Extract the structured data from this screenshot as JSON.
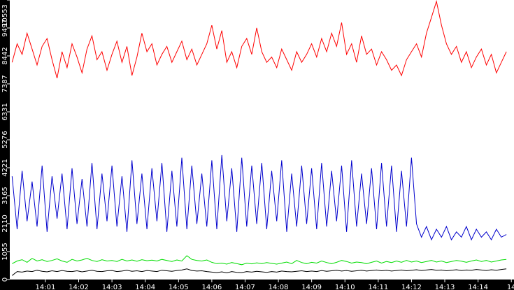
{
  "chart_data": {
    "type": "line",
    "x": [
      840,
      840.15,
      840.3,
      840.45,
      840.6,
      840.75,
      840.9,
      841.05,
      841.2,
      841.35,
      841.5,
      841.65,
      841.8,
      841.95,
      842.1,
      842.25,
      842.4,
      842.55,
      842.7,
      842.85,
      843,
      843.15,
      843.3,
      843.45,
      843.6,
      843.75,
      843.9,
      844.05,
      844.2,
      844.35,
      844.5,
      844.65,
      844.8,
      844.95,
      845.1,
      845.25,
      845.4,
      845.55,
      845.7,
      845.85,
      846,
      846.15,
      846.3,
      846.45,
      846.6,
      846.75,
      846.9,
      847.05,
      847.2,
      847.35,
      847.5,
      847.65,
      847.8,
      847.95,
      848.1,
      848.25,
      848.4,
      848.55,
      848.7,
      848.85,
      849,
      849.15,
      849.3,
      849.45,
      849.6,
      849.75,
      849.9,
      850.05,
      850.2,
      850.35,
      850.5,
      850.65,
      850.8,
      850.95,
      851.1,
      851.25,
      851.4,
      851.55,
      851.7,
      851.85,
      852,
      852.15,
      852.3,
      852.45,
      852.6,
      852.75,
      852.9,
      853.05,
      853.2,
      853.35,
      853.5,
      853.65,
      853.8,
      853.95,
      854.1,
      854.25,
      854.4,
      854.55,
      854.7,
      854.85
    ],
    "series": [
      {
        "color": "#ff0000",
        "values": [
          8200,
          8900,
          8500,
          9300,
          8700,
          8100,
          8800,
          9100,
          8300,
          7600,
          8600,
          8000,
          8900,
          8400,
          7800,
          8700,
          9200,
          8300,
          8600,
          7900,
          8500,
          9000,
          8200,
          8800,
          7700,
          8400,
          9300,
          8600,
          8900,
          8100,
          8500,
          8800,
          8200,
          8600,
          9000,
          8300,
          8700,
          8100,
          8500,
          8900,
          9600,
          8700,
          9400,
          8200,
          8600,
          8000,
          8800,
          9100,
          8500,
          9500,
          8600,
          8200,
          8400,
          8000,
          8700,
          8300,
          7900,
          8600,
          8200,
          8500,
          8900,
          8400,
          9100,
          8600,
          9300,
          8800,
          9700,
          8500,
          8900,
          8200,
          9200,
          8500,
          8700,
          8100,
          8600,
          8300,
          7900,
          8100,
          7700,
          8300,
          8600,
          8900,
          8400,
          9300,
          9900,
          10500,
          9600,
          8900,
          8500,
          8800,
          8200,
          8600,
          8000,
          8400,
          8700,
          8100,
          8500,
          7800,
          8200,
          8600
        ]
      },
      {
        "color": "#0000cc",
        "values": [
          3900,
          1900,
          4100,
          2200,
          3700,
          2000,
          4300,
          1800,
          3900,
          2300,
          4000,
          1900,
          4200,
          2100,
          3800,
          2000,
          4400,
          1900,
          4000,
          2200,
          4300,
          2000,
          3900,
          1800,
          4500,
          2100,
          4000,
          1900,
          4200,
          2200,
          4400,
          1800,
          4100,
          2000,
          4600,
          1900,
          4300,
          2100,
          4000,
          2000,
          4500,
          1900,
          4700,
          2200,
          4200,
          1800,
          4600,
          2000,
          4300,
          2100,
          4400,
          1900,
          4100,
          2200,
          4500,
          1800,
          4000,
          2000,
          4300,
          2100,
          4200,
          1900,
          4400,
          2000,
          4100,
          2200,
          4300,
          1800,
          4500,
          2000,
          4000,
          2100,
          4200,
          1900,
          4400,
          2000,
          4300,
          1800,
          4100,
          2000,
          4600,
          2100,
          1600,
          2000,
          1500,
          1900,
          1600,
          2000,
          1500,
          1800,
          1600,
          2000,
          1500,
          1900,
          1600,
          1800,
          1500,
          1900,
          1600,
          1700
        ]
      },
      {
        "color": "#00dd00",
        "values": [
          600,
          700,
          750,
          650,
          800,
          700,
          750,
          680,
          720,
          780,
          700,
          650,
          760,
          700,
          740,
          800,
          720,
          680,
          750,
          700,
          720,
          680,
          760,
          700,
          740,
          690,
          750,
          710,
          730,
          700,
          760,
          720,
          680,
          740,
          700,
          900,
          760,
          720,
          700,
          740,
          650,
          600,
          620,
          580,
          640,
          600,
          560,
          620,
          590,
          630,
          600,
          640,
          610,
          580,
          620,
          660,
          600,
          720,
          640,
          600,
          650,
          620,
          700,
          640,
          600,
          650,
          720,
          680,
          620,
          660,
          640,
          600,
          650,
          700,
          620,
          680,
          640,
          700,
          650,
          720,
          660,
          700,
          640,
          680,
          720,
          660,
          700,
          640,
          680,
          720,
          690,
          650,
          700,
          740,
          680,
          720,
          660,
          700,
          740,
          760
        ]
      },
      {
        "color": "#000000",
        "values": [
          150,
          300,
          280,
          320,
          300,
          350,
          310,
          290,
          330,
          300,
          340,
          310,
          300,
          330,
          290,
          320,
          350,
          310,
          300,
          330,
          340,
          300,
          320,
          350,
          310,
          330,
          300,
          340,
          320,
          300,
          350,
          330,
          310,
          340,
          360,
          400,
          340,
          320,
          330,
          300,
          280,
          260,
          290,
          250,
          300,
          270,
          260,
          300,
          280,
          310,
          290,
          270,
          300,
          280,
          320,
          300,
          290,
          310,
          330,
          300,
          320,
          300,
          340,
          310,
          330,
          350,
          320,
          340,
          310,
          330,
          350,
          320,
          340,
          360,
          330,
          350,
          320,
          340,
          360,
          330,
          350,
          370,
          340,
          360,
          380,
          350,
          360,
          330,
          350,
          370,
          340,
          360,
          350,
          380,
          360,
          340,
          370,
          350,
          380,
          400
        ]
      }
    ],
    "xlim": [
      839.93,
      855.08
    ],
    "xticks": [
      {
        "value": 841,
        "label": "14:01"
      },
      {
        "value": 842,
        "label": "14:02"
      },
      {
        "value": 843,
        "label": "14:03"
      },
      {
        "value": 844,
        "label": "14:04"
      },
      {
        "value": 845,
        "label": "14:05"
      },
      {
        "value": 846,
        "label": "14:06"
      },
      {
        "value": 847,
        "label": "14:07"
      },
      {
        "value": 848,
        "label": "14:08"
      },
      {
        "value": 849,
        "label": "14:09"
      },
      {
        "value": 850,
        "label": "14:10"
      },
      {
        "value": 851,
        "label": "14:11"
      },
      {
        "value": 852,
        "label": "14:12"
      },
      {
        "value": 853,
        "label": "14:13"
      },
      {
        "value": 854,
        "label": "14:14"
      },
      {
        "value": 855,
        "label": "14"
      }
    ],
    "ylim": [
      0,
      10553
    ],
    "yticks": [
      0,
      1055,
      2110,
      3165,
      4221,
      5276,
      6331,
      7387,
      8442,
      9497,
      10553
    ]
  }
}
